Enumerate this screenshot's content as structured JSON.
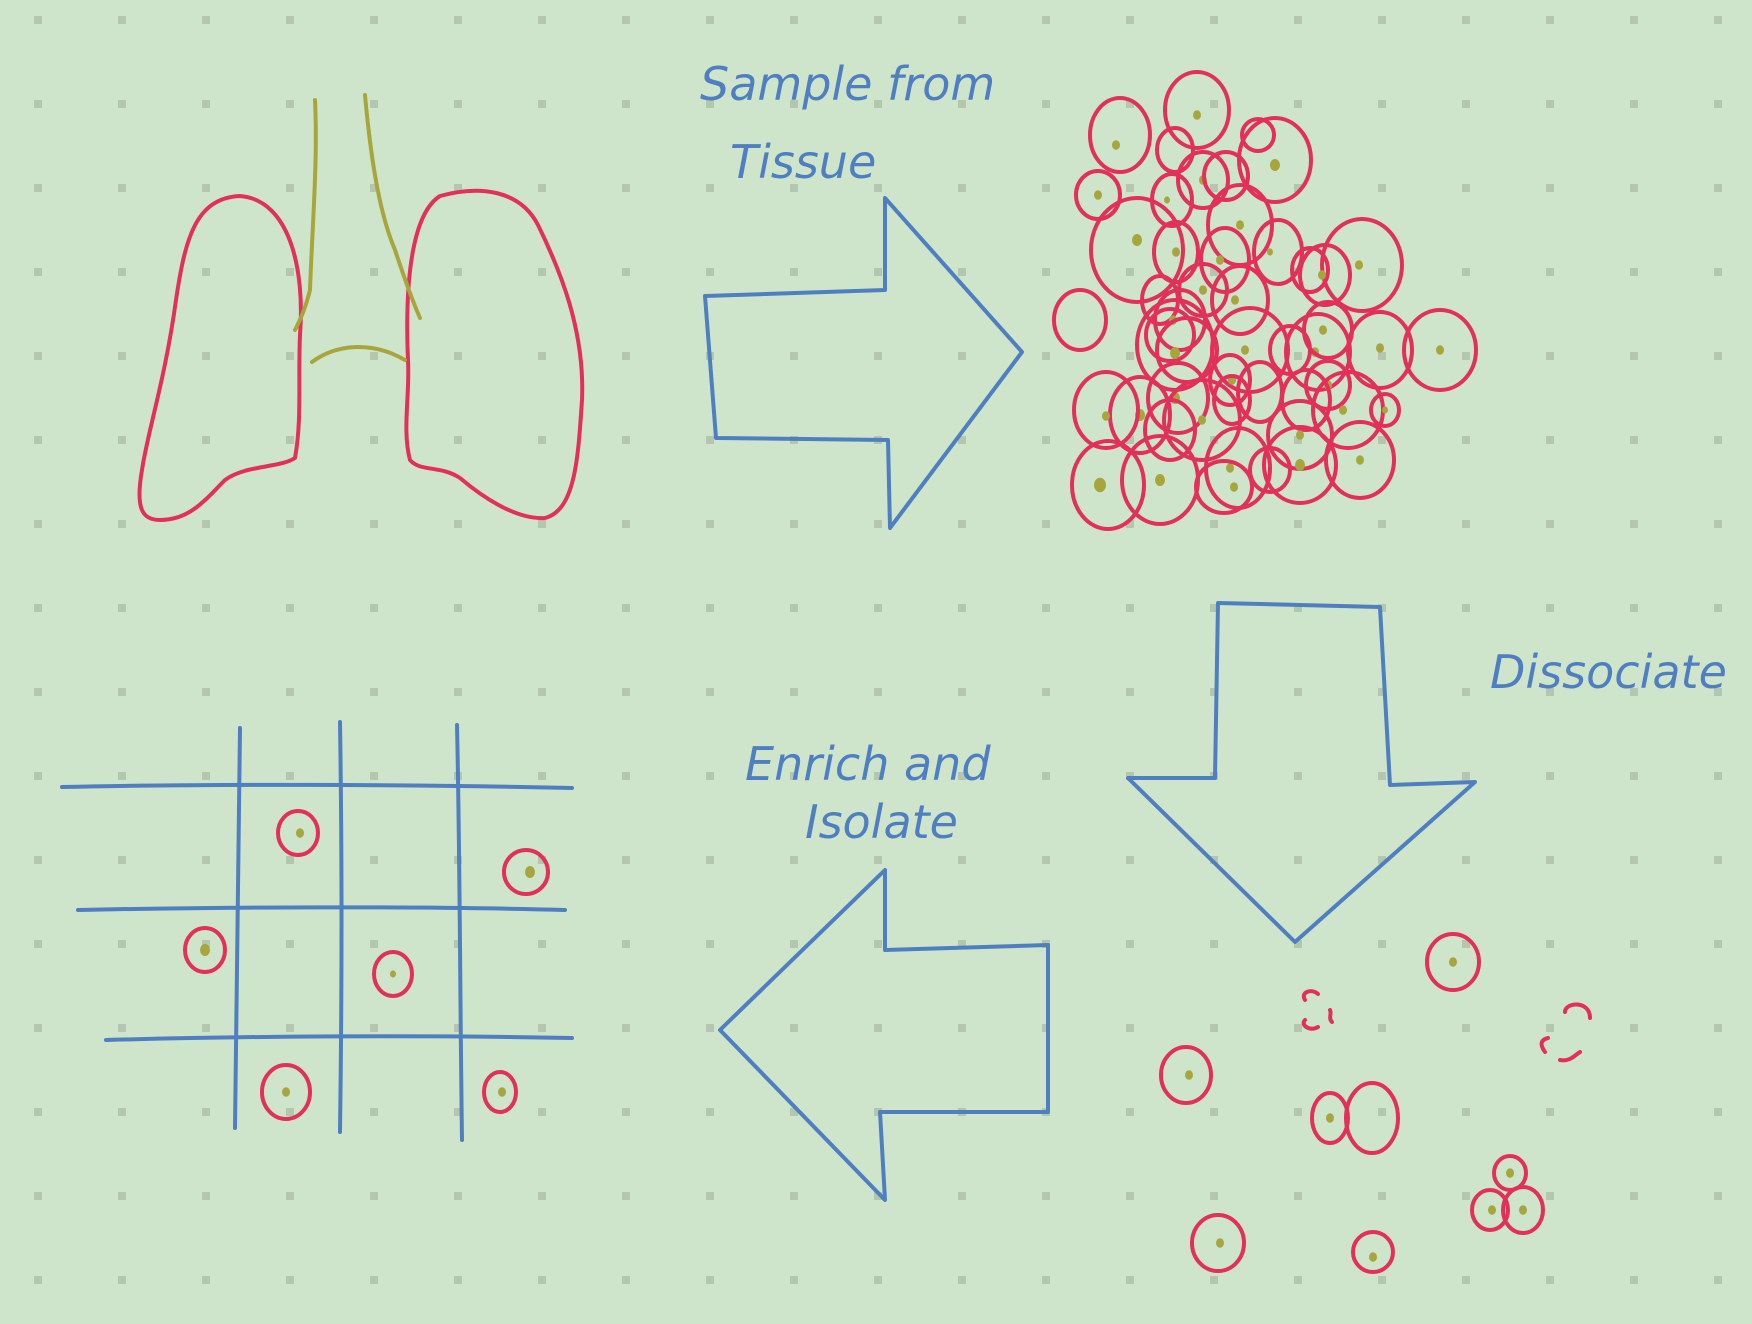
{
  "labels": {
    "sample_line1": "Sample from",
    "sample_line2": "Tissue",
    "dissociate": "Dissociate",
    "enrich_line1": "Enrich and",
    "enrich_line2": "Isolate"
  },
  "colors": {
    "background": "#cfe5cb",
    "grid_dot": "#b4c6b0",
    "arrow_and_text": "#4f7fc0",
    "cell_outline": "#e2305a",
    "nucleus_and_airway": "#a7a63c"
  }
}
